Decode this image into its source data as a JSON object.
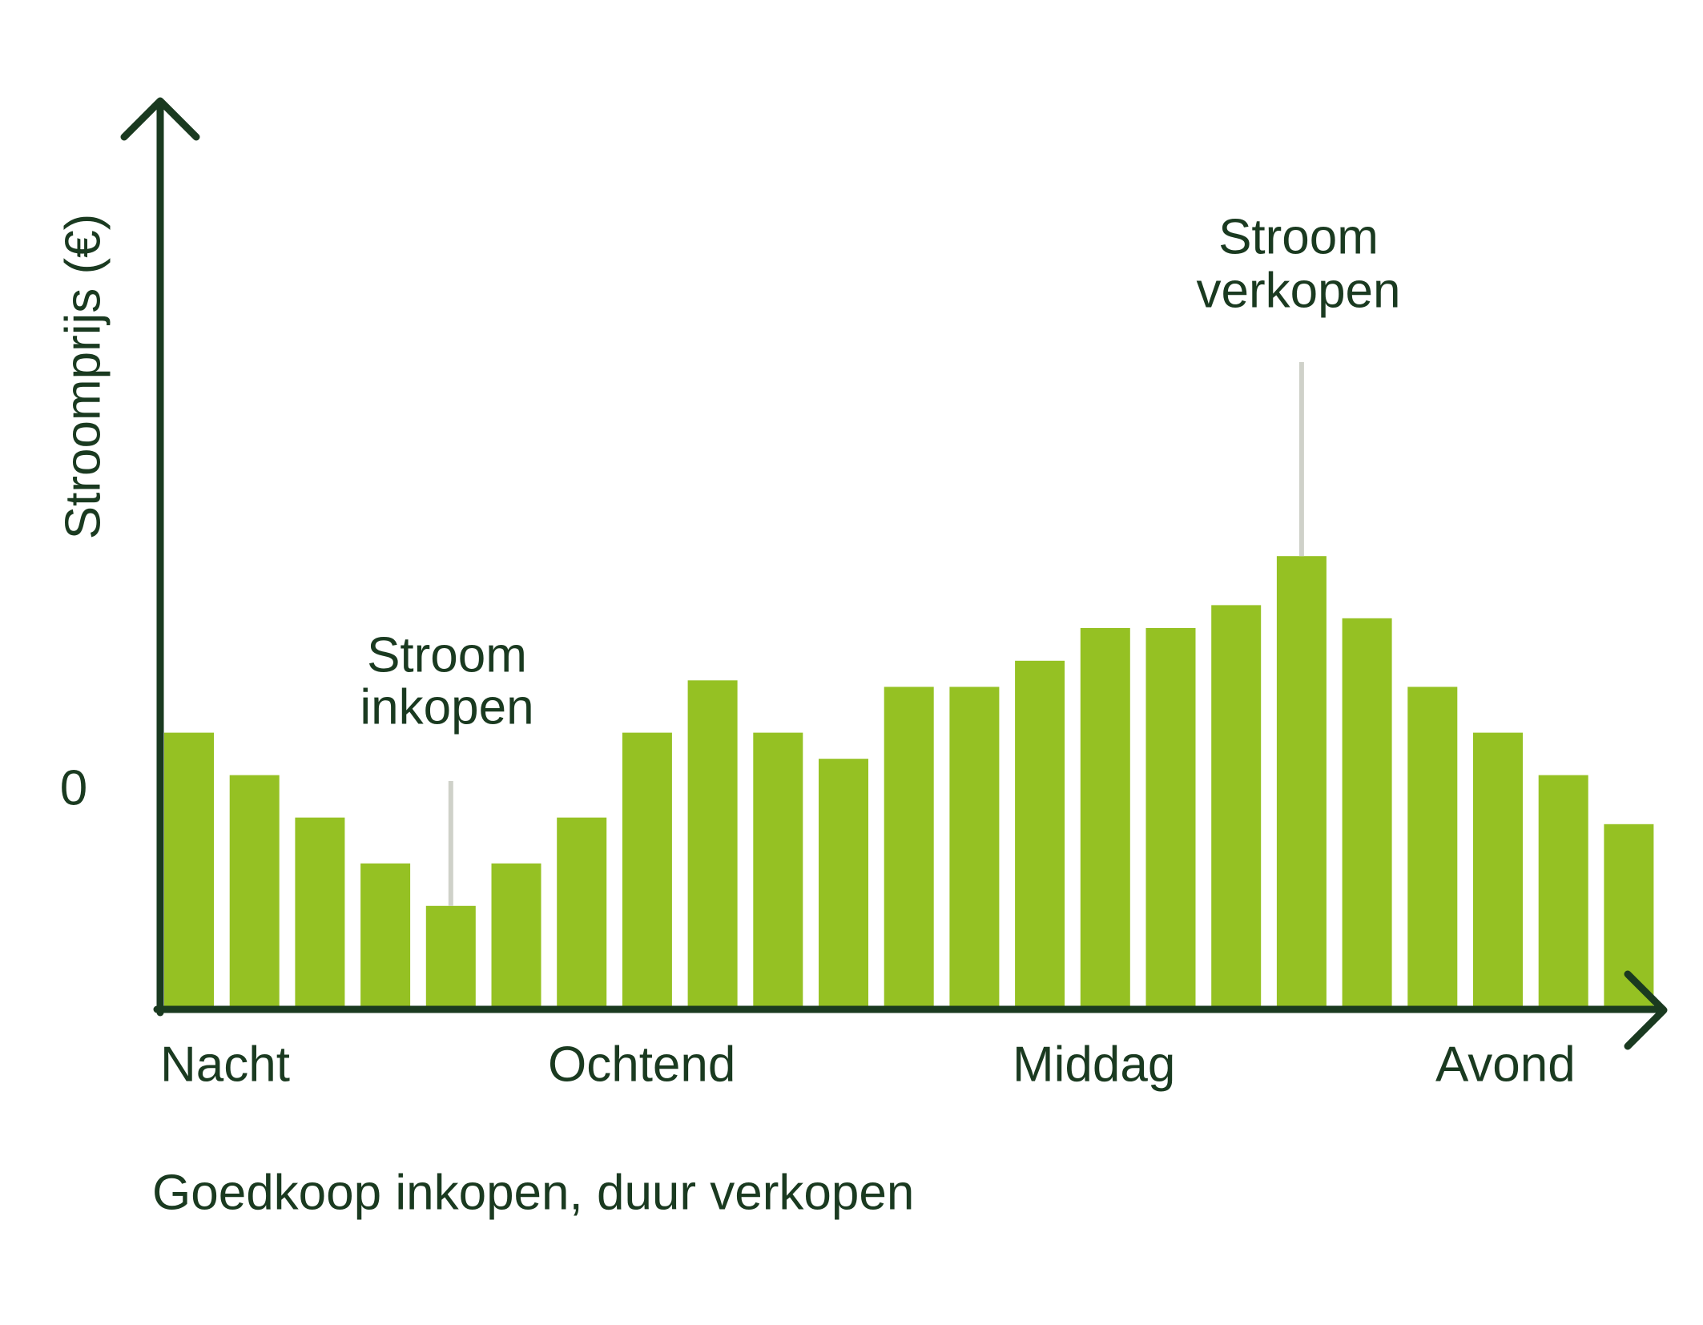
{
  "colors": {
    "bar": "#95c123",
    "axis": "#1a3a20",
    "text": "#1a3a20",
    "leader": "#cfd1c9"
  },
  "chart_data": {
    "type": "bar",
    "ylabel": "Stroomprijs (€)",
    "caption": "Goedkoop inkopen, duur verkopen",
    "y_zero_label": "0",
    "y_range": [
      -2.7,
      8.2
    ],
    "period_labels": [
      "Nacht",
      "Ochtend",
      "Middag",
      "Avond"
    ],
    "values": [
      0.9,
      0.25,
      -0.4,
      -1.1,
      -1.75,
      -1.1,
      -0.4,
      0.9,
      1.7,
      0.9,
      0.5,
      1.6,
      1.6,
      2.0,
      2.5,
      2.5,
      2.85,
      3.6,
      2.65,
      1.6,
      0.9,
      0.25,
      -0.5
    ],
    "annotations": [
      {
        "bar": 4,
        "lines": [
          "Stroom",
          "inkopen"
        ]
      },
      {
        "bar": 17,
        "lines": [
          "Stroom",
          "verkopen"
        ]
      }
    ]
  }
}
